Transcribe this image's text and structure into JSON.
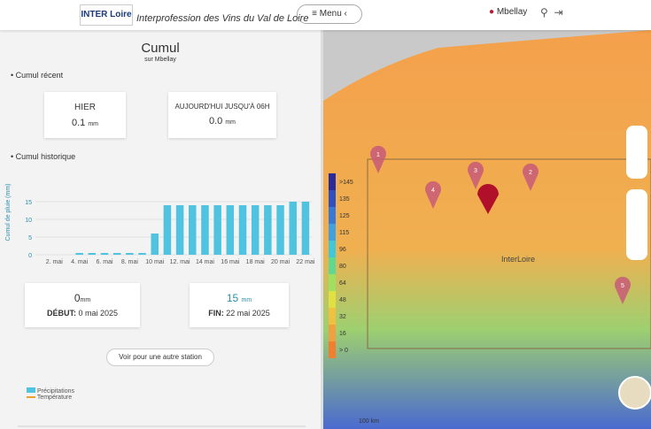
{
  "header": {
    "logo": "INTER Loire",
    "brand": "Interprofession des Vins du Val de Loire",
    "menu": "Menu",
    "location": "Mbellay"
  },
  "panel": {
    "title": "Cumul",
    "subtitle": "sur Mbellay",
    "recent_title": "Cumul récent",
    "cards": [
      {
        "label": "HIER",
        "value": "0.1",
        "unit": "mm"
      },
      {
        "label": "AUJOURD'HUI JUSQU'À 06H",
        "value": "0.0",
        "unit": "mm"
      }
    ],
    "history_title": "Cumul historique",
    "start": {
      "value": "0",
      "unit": "mm",
      "label": "DÉBUT:",
      "date": "0 mai 2025"
    },
    "end": {
      "value": "15",
      "unit": "mm",
      "label": "FIN:",
      "date": "22 mai 2025"
    },
    "button": "Voir pour une autre station",
    "legend": [
      "Précipitations",
      "Température"
    ]
  },
  "chart_data": {
    "type": "bar",
    "y_label": "Cumul de pluie (mm)",
    "categories": [
      null,
      "2. mai",
      null,
      "4. mai",
      null,
      "6. mai",
      null,
      "8. mai",
      null,
      "10 mai",
      null,
      "12. mai",
      null,
      "14 mai",
      null,
      "16 mai",
      null,
      "18 mai",
      null,
      "20 mai",
      null,
      "22 mai"
    ],
    "values": [
      0,
      0,
      0,
      0.5,
      0.5,
      0.5,
      0.5,
      0.5,
      0.5,
      6,
      14,
      14,
      14,
      14,
      14,
      14,
      14,
      14,
      14,
      14,
      15,
      15
    ],
    "color": "#4fc3e0",
    "ylim": [
      0,
      20
    ],
    "yticks": [
      0,
      5,
      10,
      15
    ],
    "grid": true
  },
  "map": {
    "place": "InterLoire",
    "markers": [
      "1",
      "2",
      "3",
      "4",
      "5"
    ],
    "scale": [
      ">145",
      "135",
      "125",
      "115",
      "96",
      "80",
      "64",
      "48",
      "32",
      "16",
      "> 0"
    ],
    "scale_bar": "100 km"
  }
}
